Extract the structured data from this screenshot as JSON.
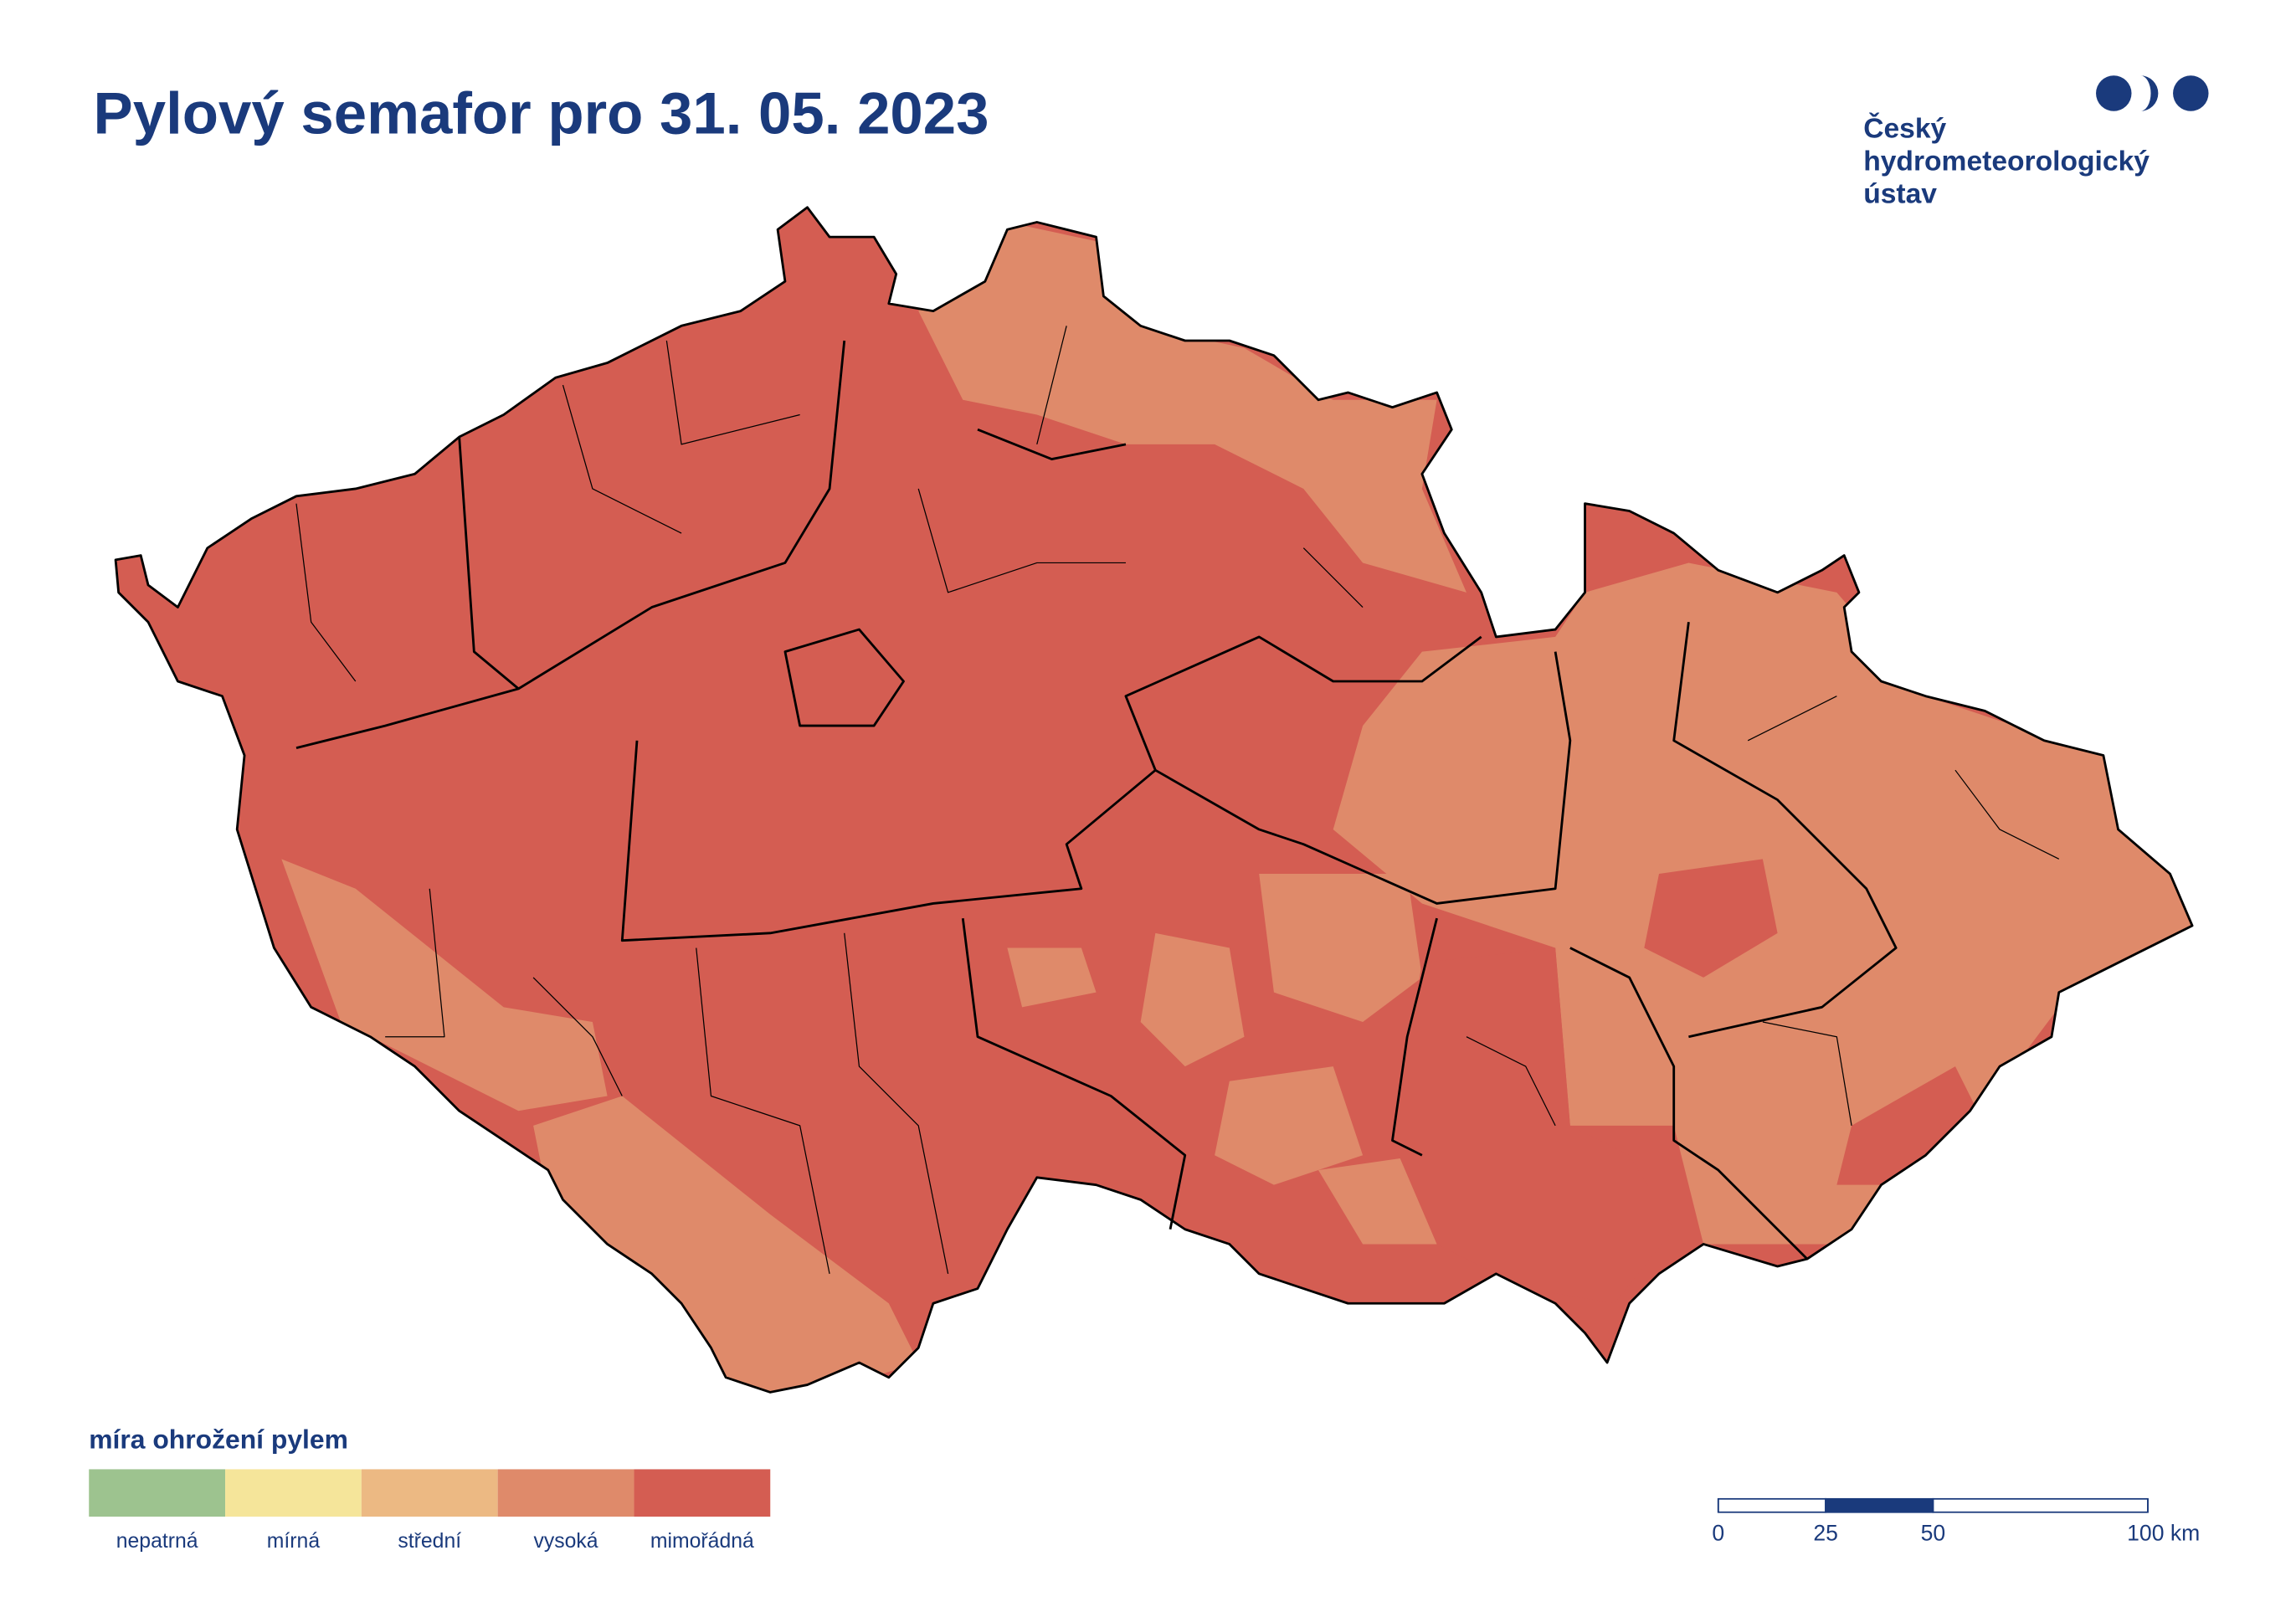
{
  "title": "Pylový semafor pro 31. 05. 2023",
  "logo": {
    "lines": [
      "Český",
      "hydrometeorologický",
      "ústav"
    ]
  },
  "legend": {
    "title": "míra ohrožení pylem",
    "items": [
      {
        "label": "nepatrná",
        "color": "#9dc38f"
      },
      {
        "label": "mírná",
        "color": "#f5e59a"
      },
      {
        "label": "střední",
        "color": "#ecb983"
      },
      {
        "label": "vysoká",
        "color": "#df8a6a"
      },
      {
        "label": "mimořádná",
        "color": "#d45d52"
      }
    ]
  },
  "scale_bar": {
    "ticks": [
      0,
      25,
      50,
      {
        "value": 100,
        "label": "100 km"
      }
    ]
  }
}
